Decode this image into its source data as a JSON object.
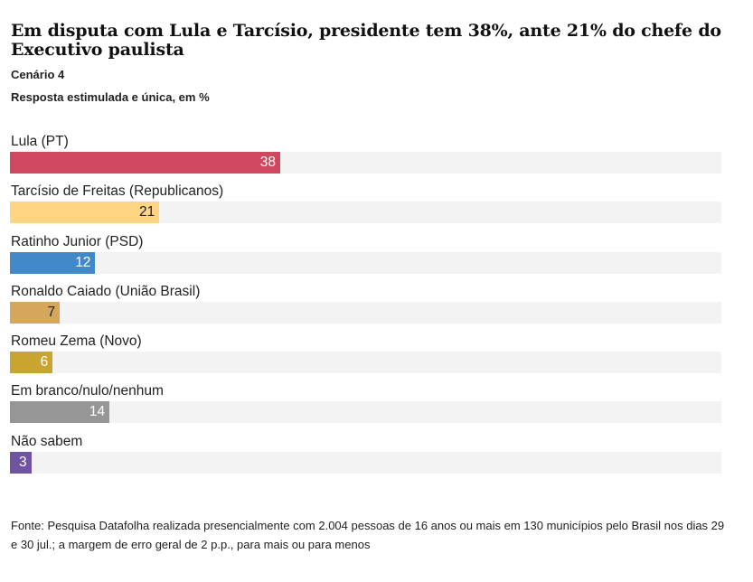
{
  "header": {
    "title": "Em disputa com Lula e Tarcísio, presidente tem 38%, ante 21% do chefe do Executivo paulista",
    "subtitle": "Cenário 4",
    "note": "Resposta estimulada e única, em %"
  },
  "chart_data": {
    "type": "bar",
    "orientation": "horizontal",
    "categories": [
      "Lula (PT)",
      "Tarcísio de Freitas (Republicanos)",
      "Ratinho Junior (PSD)",
      "Ronaldo Caiado (União Brasil)",
      "Romeu Zema (Novo)",
      "Em branco/nulo/nenhum",
      "Não sabem"
    ],
    "values": [
      38,
      21,
      12,
      7,
      6,
      14,
      3
    ],
    "colors": [
      "#d04760",
      "#ffd584",
      "#4289c9",
      "#d6a65c",
      "#c8a530",
      "#969696",
      "#6f54a0"
    ],
    "label_colors": [
      "#ffffff",
      "#222222",
      "#ffffff",
      "#222222",
      "#ffffff",
      "#ffffff",
      "#ffffff"
    ],
    "xlim": [
      0,
      100
    ],
    "grid": false
  },
  "footer": {
    "source": "Fonte: Pesquisa Datafolha realizada presencialmente com 2.004 pessoas de 16 anos ou mais em 130 municípios pelo Brasil nos dias 29 e 30 jul.; a margem de erro geral de 2 p.p., para mais ou para menos"
  }
}
